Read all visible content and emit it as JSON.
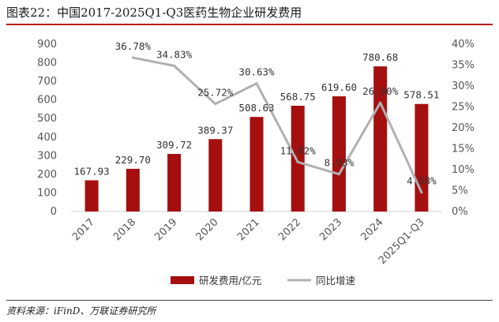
{
  "header": {
    "title": "图表22：中国2017-2025Q1-Q3医药生物企业研发费用"
  },
  "footer": {
    "source": "资料来源：iFinD、万联证券研究所"
  },
  "chart_data": {
    "type": "bar",
    "categories": [
      "2017",
      "2018",
      "2019",
      "2020",
      "2021",
      "2022",
      "2023",
      "2024",
      "2025Q1-Q3"
    ],
    "series": [
      {
        "name": "研发费用/亿元",
        "type": "bar",
        "axis": "left",
        "color": "#a50f0f",
        "values": [
          167.93,
          229.7,
          309.72,
          389.37,
          508.63,
          568.75,
          619.6,
          780.68,
          578.51
        ],
        "labels": [
          "167.93",
          "229.70",
          "309.72",
          "389.37",
          "508.63",
          "568.75",
          "619.60",
          "780.68",
          "578.51"
        ]
      },
      {
        "name": "同比增速",
        "type": "line",
        "axis": "right",
        "color": "#b0b0b0",
        "values": [
          null,
          36.78,
          34.83,
          25.72,
          30.63,
          11.82,
          8.93,
          26.0,
          4.58
        ],
        "labels": [
          "",
          "36.78%",
          "34.83%",
          "25.72%",
          "30.63%",
          "11.82%",
          "8.93%",
          "26.00%",
          "4.58%"
        ]
      }
    ],
    "y_left": {
      "ylim": [
        0,
        900
      ],
      "ticks": [
        "0",
        "100",
        "200",
        "300",
        "400",
        "500",
        "600",
        "700",
        "800",
        "900"
      ]
    },
    "y_right": {
      "ylim": [
        0,
        40
      ],
      "ticks": [
        "0%",
        "5%",
        "10%",
        "15%",
        "20%",
        "25%",
        "30%",
        "35%",
        "40%"
      ]
    },
    "grid": false,
    "legend_position": "bottom"
  }
}
